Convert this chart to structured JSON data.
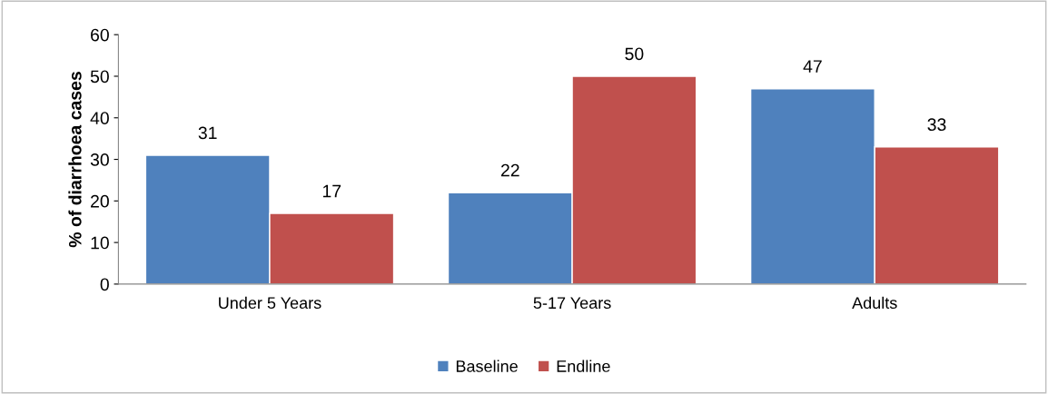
{
  "chart_data": {
    "type": "bar",
    "ylabel": "% of diarrhoea cases",
    "categories": [
      "Under 5 Years",
      "5-17 Years",
      "Adults"
    ],
    "series": [
      {
        "name": "Baseline",
        "color": "#4f81bd",
        "values": [
          31,
          22,
          47
        ]
      },
      {
        "name": "Endline",
        "color": "#c0504d",
        "values": [
          17,
          50,
          33
        ]
      }
    ],
    "ylim": [
      0,
      60
    ],
    "yticks": [
      0,
      10,
      20,
      30,
      40,
      50,
      60
    ],
    "grid": false,
    "legend": "bottom",
    "data_labels": true
  }
}
